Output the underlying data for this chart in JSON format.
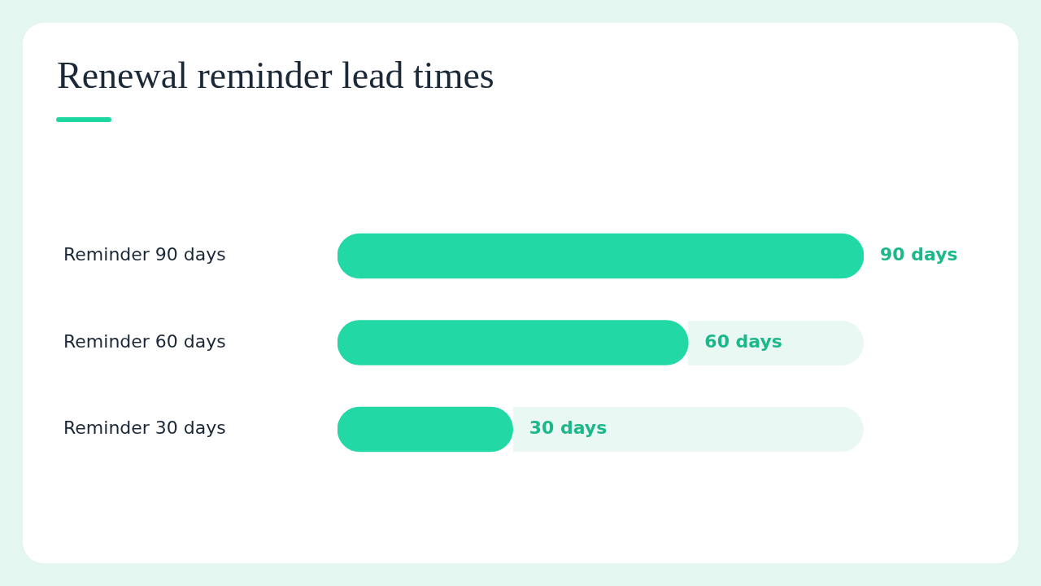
{
  "chart_data": {
    "type": "bar",
    "orientation": "horizontal",
    "title": "Renewal reminder lead times",
    "categories": [
      "Reminder 90 days",
      "Reminder 60 days",
      "Reminder 30 days"
    ],
    "values": [
      90,
      60,
      30
    ],
    "color": "#22d8a4",
    "value_labels": [
      "90 days",
      "60 days",
      "30 days"
    ],
    "grid": false,
    "legend": false,
    "tick_labels": "y"
  }
}
